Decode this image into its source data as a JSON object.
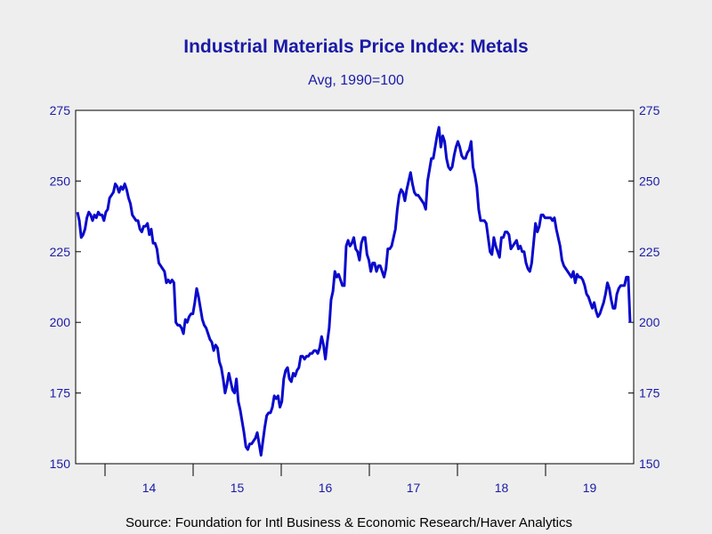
{
  "chart_data": {
    "type": "line",
    "title": "Industrial Materials Price Index: Metals",
    "subtitle": "Avg, 1990=100",
    "source": "Source:  Foundation for Intl Business & Economic Research/Haver Analytics",
    "xlabel": "",
    "ylabel": "",
    "ylim": [
      150,
      275
    ],
    "yticks": [
      150,
      175,
      200,
      225,
      250,
      275
    ],
    "y_axis_sides": "both",
    "grid": false,
    "x_range": [
      "2013-09",
      "2019-12"
    ],
    "x_year_boundaries": [
      "2014-01",
      "2015-01",
      "2016-01",
      "2017-01",
      "2018-01",
      "2019-01"
    ],
    "x_tick_labels": [
      {
        "label": "14",
        "year": "2014"
      },
      {
        "label": "15",
        "year": "2015"
      },
      {
        "label": "16",
        "year": "2016"
      },
      {
        "label": "17",
        "year": "2017"
      },
      {
        "label": "18",
        "year": "2018"
      },
      {
        "label": "19",
        "year": "2019"
      }
    ],
    "colors": {
      "line": "#0a0acc",
      "axis": "#000000",
      "plot_bg": "#ffffff",
      "page_bg": "#eeeeee",
      "text": "#1a1aa6"
    },
    "series": [
      {
        "frequency": "weekly",
        "start": "2013-09",
        "values": [
          239,
          236,
          230,
          231,
          233,
          237,
          239,
          238,
          236,
          238,
          237,
          239,
          238,
          238,
          236,
          239,
          240,
          244,
          245,
          246,
          249,
          248,
          246,
          248,
          247,
          249,
          247,
          244,
          242,
          238,
          237,
          236,
          236,
          233,
          232,
          234,
          234,
          235,
          231,
          233,
          228,
          228,
          226,
          221,
          220,
          219,
          218,
          214,
          215,
          214,
          215,
          214,
          200,
          199,
          199,
          198,
          196,
          201,
          200,
          202,
          203,
          203,
          207,
          212,
          209,
          205,
          201,
          199,
          198,
          196,
          194,
          193,
          190,
          192,
          191,
          186,
          184,
          180,
          175,
          178,
          182,
          179,
          176,
          175,
          180,
          172,
          169,
          165,
          161,
          156,
          155,
          157,
          157,
          158,
          159,
          161,
          157,
          153,
          158,
          163,
          167,
          168,
          168,
          170,
          174,
          173,
          174,
          170,
          172,
          180,
          183,
          184,
          180,
          179,
          182,
          181,
          183,
          184,
          188,
          188,
          187,
          188,
          188,
          189,
          189,
          190,
          190,
          189,
          191,
          195,
          192,
          187,
          193,
          198,
          208,
          211,
          218,
          216,
          217,
          215,
          213,
          213,
          227,
          229,
          227,
          228,
          230,
          226,
          225,
          222,
          228,
          230,
          230,
          224,
          222,
          218,
          221,
          221,
          218,
          220,
          220,
          218,
          216,
          219,
          226,
          226,
          227,
          230,
          233,
          240,
          245,
          247,
          246,
          243,
          247,
          250,
          253,
          249,
          246,
          245,
          245,
          244,
          243,
          242,
          240,
          250,
          254,
          258,
          258,
          262,
          266,
          269,
          262,
          266,
          264,
          258,
          255,
          254,
          255,
          259,
          262,
          264,
          262,
          259,
          258,
          258,
          260,
          261,
          264,
          255,
          252,
          248,
          240,
          236,
          236,
          236,
          235,
          230,
          225,
          224,
          230,
          227,
          225,
          223,
          230,
          230,
          232,
          232,
          231,
          226,
          227,
          228,
          229,
          226,
          227,
          225,
          225,
          221,
          219,
          218,
          221,
          228,
          235,
          232,
          234,
          238,
          238,
          237,
          237,
          237,
          237,
          236,
          237,
          233,
          230,
          227,
          222,
          220,
          219,
          218,
          217,
          216,
          218,
          214,
          217,
          216,
          216,
          215,
          213,
          210,
          209,
          207,
          205,
          207,
          204,
          202,
          203,
          205,
          207,
          210,
          214,
          212,
          208,
          205,
          205,
          210,
          212,
          213,
          213,
          213,
          216,
          216,
          200
        ]
      }
    ]
  }
}
